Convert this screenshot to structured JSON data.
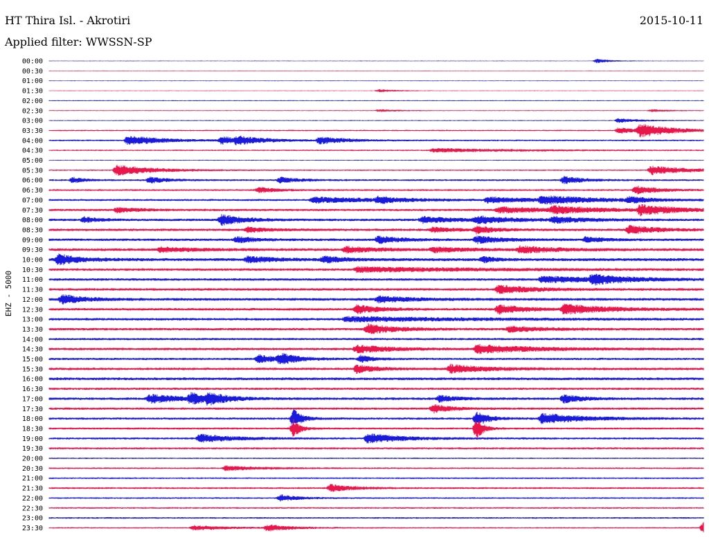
{
  "header": {
    "station": "HT Thira Isl. - Akrotiri",
    "date": "2015-10-11",
    "filter": "Applied filter: WWSSN-SP"
  },
  "chart_data": {
    "type": "line",
    "subtype": "helicorder",
    "ylabel": "EHZ - 5000",
    "row_labels": [
      "00:00",
      "00:30",
      "01:00",
      "01:30",
      "02:00",
      "02:30",
      "03:00",
      "03:30",
      "04:00",
      "04:30",
      "05:00",
      "05:30",
      "06:00",
      "06:30",
      "07:00",
      "07:30",
      "08:00",
      "08:30",
      "09:00",
      "09:30",
      "10:00",
      "10:30",
      "11:00",
      "11:30",
      "12:00",
      "12:30",
      "13:00",
      "13:30",
      "14:00",
      "14:30",
      "15:00",
      "15:30",
      "16:00",
      "16:30",
      "17:00",
      "17:30",
      "18:00",
      "18:30",
      "19:00",
      "19:30",
      "20:00",
      "20:30",
      "21:00",
      "21:30",
      "22:00",
      "22:30",
      "23:00",
      "23:30"
    ],
    "colors": [
      "#1a1adc",
      "#e8164b"
    ],
    "row_minutes": 30,
    "noise": [
      0.15,
      0.15,
      0.15,
      0.15,
      0.2,
      0.2,
      0.2,
      0.3,
      0.35,
      0.3,
      0.2,
      0.3,
      0.4,
      0.4,
      0.45,
      0.5,
      0.55,
      0.55,
      0.55,
      0.6,
      0.65,
      0.55,
      0.55,
      0.55,
      0.6,
      0.55,
      0.55,
      0.55,
      0.5,
      0.55,
      0.5,
      0.55,
      0.6,
      0.5,
      0.55,
      0.5,
      0.5,
      0.45,
      0.45,
      0.45,
      0.3,
      0.35,
      0.35,
      0.4,
      0.35,
      0.35,
      0.35,
      0.3
    ],
    "events": [
      {
        "row": 0,
        "minute": 25.0,
        "amplitude": 0.9,
        "duration": 0.6
      },
      {
        "row": 3,
        "minute": 15.0,
        "amplitude": 0.6,
        "duration": 0.8
      },
      {
        "row": 5,
        "minute": 15.0,
        "amplitude": 0.5,
        "duration": 0.8
      },
      {
        "row": 5,
        "minute": 27.5,
        "amplitude": 0.5,
        "duration": 0.8
      },
      {
        "row": 6,
        "minute": 26.0,
        "amplitude": 0.9,
        "duration": 1.0
      },
      {
        "row": 7,
        "minute": 27.0,
        "amplitude": 2.6,
        "duration": 1.5
      },
      {
        "row": 7,
        "minute": 26.0,
        "amplitude": 1.2,
        "duration": 1.0
      },
      {
        "row": 8,
        "minute": 3.5,
        "amplitude": 2.1,
        "duration": 1.5
      },
      {
        "row": 8,
        "minute": 7.8,
        "amplitude": 1.6,
        "duration": 1.0
      },
      {
        "row": 8,
        "minute": 12.3,
        "amplitude": 1.5,
        "duration": 1.2
      },
      {
        "row": 8,
        "minute": 8.5,
        "amplitude": 1.2,
        "duration": 1.5
      },
      {
        "row": 9,
        "minute": 17.5,
        "amplitude": 0.8,
        "duration": 3.5
      },
      {
        "row": 11,
        "minute": 3.0,
        "amplitude": 2.4,
        "duration": 1.6
      },
      {
        "row": 11,
        "minute": 27.5,
        "amplitude": 2.0,
        "duration": 1.5
      },
      {
        "row": 12,
        "minute": 1.0,
        "amplitude": 1.2,
        "duration": 0.5
      },
      {
        "row": 12,
        "minute": 4.5,
        "amplitude": 1.3,
        "duration": 0.8
      },
      {
        "row": 12,
        "minute": 10.5,
        "amplitude": 1.3,
        "duration": 0.8
      },
      {
        "row": 12,
        "minute": 23.5,
        "amplitude": 1.8,
        "duration": 0.8
      },
      {
        "row": 13,
        "minute": 9.5,
        "amplitude": 1.2,
        "duration": 0.8
      },
      {
        "row": 13,
        "minute": 26.8,
        "amplitude": 1.8,
        "duration": 1.0
      },
      {
        "row": 14,
        "minute": 12.0,
        "amplitude": 1.2,
        "duration": 3.0
      },
      {
        "row": 14,
        "minute": 15.0,
        "amplitude": 1.3,
        "duration": 1.0
      },
      {
        "row": 14,
        "minute": 20.0,
        "amplitude": 1.2,
        "duration": 2.0
      },
      {
        "row": 14,
        "minute": 22.5,
        "amplitude": 1.6,
        "duration": 2.5
      },
      {
        "row": 14,
        "minute": 26.5,
        "amplitude": 1.2,
        "duration": 0.8
      },
      {
        "row": 15,
        "minute": 3.0,
        "amplitude": 1.0,
        "duration": 1.0
      },
      {
        "row": 15,
        "minute": 20.5,
        "amplitude": 1.2,
        "duration": 2.5
      },
      {
        "row": 15,
        "minute": 23.0,
        "amplitude": 1.3,
        "duration": 2.0
      },
      {
        "row": 15,
        "minute": 27.0,
        "amplitude": 2.2,
        "duration": 1.5
      },
      {
        "row": 16,
        "minute": 1.5,
        "amplitude": 1.2,
        "duration": 0.6
      },
      {
        "row": 16,
        "minute": 7.8,
        "amplitude": 2.3,
        "duration": 1.0
      },
      {
        "row": 16,
        "minute": 17.0,
        "amplitude": 1.3,
        "duration": 1.5
      },
      {
        "row": 16,
        "minute": 19.5,
        "amplitude": 1.5,
        "duration": 1.5
      },
      {
        "row": 16,
        "minute": 23.0,
        "amplitude": 1.2,
        "duration": 1.5
      },
      {
        "row": 17,
        "minute": 9.0,
        "amplitude": 1.0,
        "duration": 1.0
      },
      {
        "row": 17,
        "minute": 17.5,
        "amplitude": 1.0,
        "duration": 1.0
      },
      {
        "row": 17,
        "minute": 19.5,
        "amplitude": 1.6,
        "duration": 0.7
      },
      {
        "row": 17,
        "minute": 26.5,
        "amplitude": 1.8,
        "duration": 1.2
      },
      {
        "row": 18,
        "minute": 8.5,
        "amplitude": 1.4,
        "duration": 0.8
      },
      {
        "row": 18,
        "minute": 15.0,
        "amplitude": 1.6,
        "duration": 1.0
      },
      {
        "row": 18,
        "minute": 19.5,
        "amplitude": 1.5,
        "duration": 1.2
      },
      {
        "row": 18,
        "minute": 24.5,
        "amplitude": 1.2,
        "duration": 0.8
      },
      {
        "row": 19,
        "minute": 5.0,
        "amplitude": 1.0,
        "duration": 1.5
      },
      {
        "row": 19,
        "minute": 13.5,
        "amplitude": 1.2,
        "duration": 1.5
      },
      {
        "row": 19,
        "minute": 17.5,
        "amplitude": 1.0,
        "duration": 1.5
      },
      {
        "row": 19,
        "minute": 21.5,
        "amplitude": 1.4,
        "duration": 1.5
      },
      {
        "row": 20,
        "minute": 0.3,
        "amplitude": 2.3,
        "duration": 1.0
      },
      {
        "row": 20,
        "minute": 9.0,
        "amplitude": 1.3,
        "duration": 1.2
      },
      {
        "row": 20,
        "minute": 12.5,
        "amplitude": 1.4,
        "duration": 0.8
      },
      {
        "row": 20,
        "minute": 19.8,
        "amplitude": 1.2,
        "duration": 0.5
      },
      {
        "row": 21,
        "minute": 14.0,
        "amplitude": 1.0,
        "duration": 5.0
      },
      {
        "row": 22,
        "minute": 22.5,
        "amplitude": 1.4,
        "duration": 2.5
      },
      {
        "row": 22,
        "minute": 24.8,
        "amplitude": 1.8,
        "duration": 1.5
      },
      {
        "row": 23,
        "minute": 20.5,
        "amplitude": 1.8,
        "duration": 1.5
      },
      {
        "row": 24,
        "minute": 0.5,
        "amplitude": 2.0,
        "duration": 1.0
      },
      {
        "row": 24,
        "minute": 15.0,
        "amplitude": 1.3,
        "duration": 1.5
      },
      {
        "row": 25,
        "minute": 14.0,
        "amplitude": 1.8,
        "duration": 1.0
      },
      {
        "row": 25,
        "minute": 20.5,
        "amplitude": 2.0,
        "duration": 1.2
      },
      {
        "row": 25,
        "minute": 23.5,
        "amplitude": 2.0,
        "duration": 2.0
      },
      {
        "row": 26,
        "minute": 13.5,
        "amplitude": 1.0,
        "duration": 5.0
      },
      {
        "row": 27,
        "minute": 14.5,
        "amplitude": 2.2,
        "duration": 1.2
      },
      {
        "row": 27,
        "minute": 21.0,
        "amplitude": 1.2,
        "duration": 1.5
      },
      {
        "row": 29,
        "minute": 14.0,
        "amplitude": 1.6,
        "duration": 1.5
      },
      {
        "row": 29,
        "minute": 19.5,
        "amplitude": 1.8,
        "duration": 2.5
      },
      {
        "row": 30,
        "minute": 9.5,
        "amplitude": 1.8,
        "duration": 0.8
      },
      {
        "row": 30,
        "minute": 10.5,
        "amplitude": 2.1,
        "duration": 0.8
      },
      {
        "row": 30,
        "minute": 14.2,
        "amplitude": 1.6,
        "duration": 0.5
      },
      {
        "row": 31,
        "minute": 14.0,
        "amplitude": 1.8,
        "duration": 0.8
      },
      {
        "row": 31,
        "minute": 18.3,
        "amplitude": 1.8,
        "duration": 1.5
      },
      {
        "row": 34,
        "minute": 4.5,
        "amplitude": 1.8,
        "duration": 1.5
      },
      {
        "row": 34,
        "minute": 6.4,
        "amplitude": 2.1,
        "duration": 0.8
      },
      {
        "row": 34,
        "minute": 7.2,
        "amplitude": 2.0,
        "duration": 0.8
      },
      {
        "row": 34,
        "minute": 17.8,
        "amplitude": 1.4,
        "duration": 0.8
      },
      {
        "row": 34,
        "minute": 23.5,
        "amplitude": 1.8,
        "duration": 0.8
      },
      {
        "row": 35,
        "minute": 17.5,
        "amplitude": 1.8,
        "duration": 0.8
      },
      {
        "row": 36,
        "minute": 11.1,
        "amplitude": 4.0,
        "duration": 0.4
      },
      {
        "row": 36,
        "minute": 22.5,
        "amplitude": 2.3,
        "duration": 1.8
      },
      {
        "row": 36,
        "minute": 19.5,
        "amplitude": 3.5,
        "duration": 0.5
      },
      {
        "row": 37,
        "minute": 11.1,
        "amplitude": 4.0,
        "duration": 0.3
      },
      {
        "row": 37,
        "minute": 19.5,
        "amplitude": 5.0,
        "duration": 0.3
      },
      {
        "row": 38,
        "minute": 6.8,
        "amplitude": 1.8,
        "duration": 1.5
      },
      {
        "row": 38,
        "minute": 14.5,
        "amplitude": 2.2,
        "duration": 1.5
      },
      {
        "row": 41,
        "minute": 8.0,
        "amplitude": 1.0,
        "duration": 1.5
      },
      {
        "row": 43,
        "minute": 12.8,
        "amplitude": 1.6,
        "duration": 1.0
      },
      {
        "row": 44,
        "minute": 10.5,
        "amplitude": 1.4,
        "duration": 0.8
      },
      {
        "row": 47,
        "minute": 6.5,
        "amplitude": 1.0,
        "duration": 1.5
      },
      {
        "row": 47,
        "minute": 9.9,
        "amplitude": 1.4,
        "duration": 1.0
      },
      {
        "row": 47,
        "minute": 29.9,
        "amplitude": 2.5,
        "duration": 0.3
      }
    ]
  }
}
